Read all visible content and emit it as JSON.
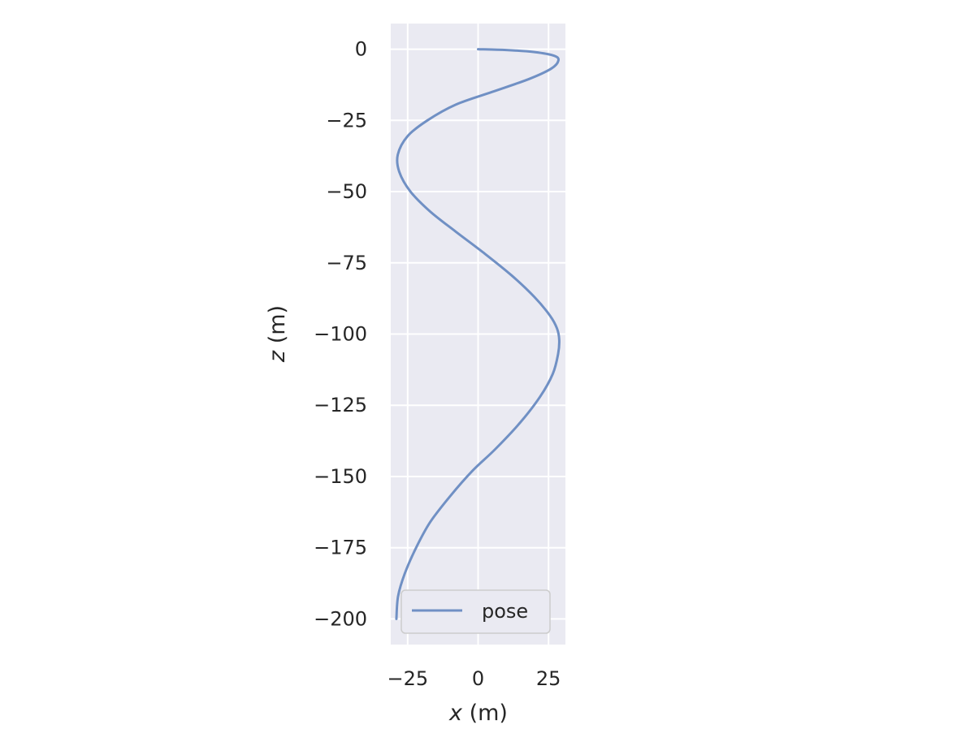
{
  "chart_data": {
    "type": "line",
    "xlabel_var": "x",
    "xlabel_unit": " (m)",
    "ylabel_var": "z",
    "ylabel_unit": " (m)",
    "xlim": [
      -31,
      31
    ],
    "ylim": [
      -209,
      9
    ],
    "xticks": [
      -25,
      0,
      25
    ],
    "xtick_labels": [
      "−25",
      "0",
      "25"
    ],
    "yticks": [
      0,
      -25,
      -50,
      -75,
      -100,
      -125,
      -150,
      -175,
      -200
    ],
    "ytick_labels": [
      "0",
      "−25",
      "−50",
      "−75",
      "−100",
      "−125",
      "−150",
      "−175",
      "−200"
    ],
    "grid": true,
    "legend_position": "lower-right",
    "series": [
      {
        "name": "pose",
        "color": "#7090c4",
        "x": [
          0,
          10,
          20,
          27,
          28.5,
          26,
          18,
          5,
          -8,
          -18,
          -25,
          -28.5,
          -28,
          -24,
          -17,
          -8,
          2,
          12,
          20,
          25.5,
          28,
          28.8,
          28.4,
          26.5,
          22,
          15,
          6,
          -2,
          -10,
          -17,
          -22,
          -26,
          -28.4,
          -29
        ],
        "z": [
          0,
          -0.3,
          -1,
          -2.3,
          -4,
          -6.8,
          -10.5,
          -15,
          -19.5,
          -25,
          -30.5,
          -37,
          -43,
          -50,
          -57,
          -64,
          -71.5,
          -79.5,
          -87,
          -93.5,
          -98,
          -102,
          -107,
          -114,
          -122,
          -131,
          -140.5,
          -148,
          -157,
          -166,
          -175,
          -184,
          -192,
          -200
        ]
      }
    ]
  }
}
